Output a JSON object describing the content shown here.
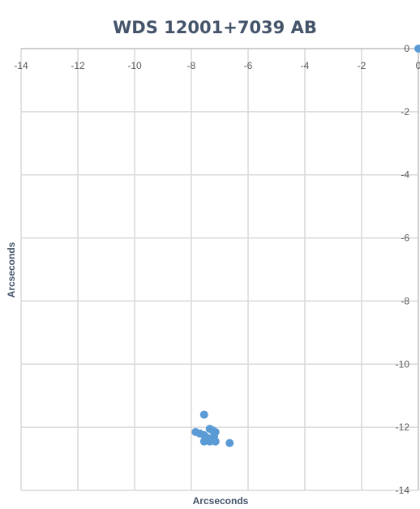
{
  "chart_data": {
    "type": "scatter",
    "title": "WDS 12001+7039 AB",
    "xlabel": "Arcseconds",
    "ylabel": "Arcseconds",
    "xlim": [
      -14,
      0
    ],
    "ylim": [
      -14,
      0
    ],
    "x_ticks": [
      -14,
      -12,
      -10,
      -8,
      -6,
      -4,
      -2,
      0
    ],
    "y_ticks": [
      0,
      -2,
      -4,
      -6,
      -8,
      -10,
      -12,
      -14
    ],
    "x_tick_labels": [
      "-14",
      "-12",
      "-10",
      "-8",
      "-6",
      "-4",
      "-2",
      "0"
    ],
    "y_tick_labels": [
      "0",
      "-2",
      "-4",
      "-6",
      "-8",
      "-10",
      "-12",
      "-14"
    ],
    "grid": true,
    "marker_color": "#5b9bd5",
    "series": [
      {
        "points": [
          {
            "x": 0,
            "y": 0
          },
          {
            "x": -7.55,
            "y": -11.6
          },
          {
            "x": -7.85,
            "y": -12.15
          },
          {
            "x": -7.7,
            "y": -12.2
          },
          {
            "x": -7.55,
            "y": -12.25
          },
          {
            "x": -7.35,
            "y": -12.05
          },
          {
            "x": -7.25,
            "y": -12.1
          },
          {
            "x": -7.15,
            "y": -12.15
          },
          {
            "x": -7.5,
            "y": -12.3
          },
          {
            "x": -7.4,
            "y": -12.35
          },
          {
            "x": -7.2,
            "y": -12.3
          },
          {
            "x": -7.55,
            "y": -12.45
          },
          {
            "x": -7.35,
            "y": -12.45
          },
          {
            "x": -7.15,
            "y": -12.45
          },
          {
            "x": -6.65,
            "y": -12.5
          }
        ]
      }
    ]
  }
}
